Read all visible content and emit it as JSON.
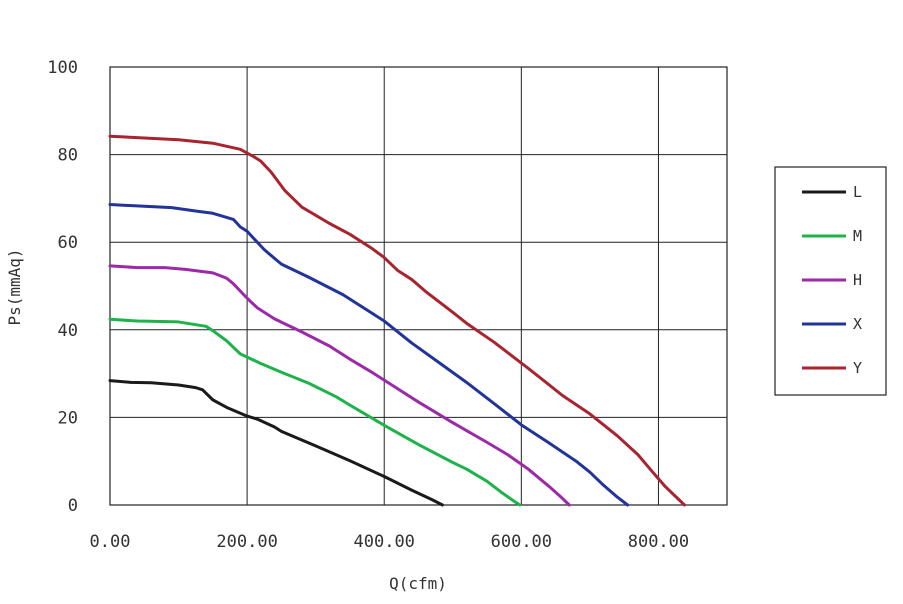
{
  "chart_data": {
    "type": "line",
    "xlabel": "Q(cfm)",
    "ylabel": "Ps(mmAq)",
    "xlim": [
      0,
      900
    ],
    "ylim": [
      0,
      100
    ],
    "x_ticks": [
      0,
      200,
      400,
      600,
      800
    ],
    "x_tick_labels": [
      "0.00",
      "200.00",
      "400.00",
      "600.00",
      "800.00"
    ],
    "y_ticks": [
      0,
      20,
      40,
      60,
      80,
      100
    ],
    "y_tick_labels": [
      "0",
      "20",
      "40",
      "60",
      "80",
      "100"
    ],
    "grid": true,
    "legend_position": "right",
    "series": [
      {
        "name": "L",
        "color": "#1a1a1a",
        "points": [
          [
            0,
            28.4
          ],
          [
            30,
            28.0
          ],
          [
            60,
            27.9
          ],
          [
            100,
            27.4
          ],
          [
            125,
            26.8
          ],
          [
            135,
            26.3
          ],
          [
            150,
            24.0
          ],
          [
            170,
            22.3
          ],
          [
            200,
            20.3
          ],
          [
            215,
            19.6
          ],
          [
            240,
            17.8
          ],
          [
            250,
            16.8
          ],
          [
            300,
            13.5
          ],
          [
            350,
            10.1
          ],
          [
            400,
            6.5
          ],
          [
            440,
            3.4
          ],
          [
            470,
            1.2
          ],
          [
            485,
            0
          ]
        ]
      },
      {
        "name": "M",
        "color": "#1db34a",
        "points": [
          [
            0,
            42.4
          ],
          [
            40,
            42.0
          ],
          [
            100,
            41.8
          ],
          [
            140,
            40.8
          ],
          [
            150,
            39.8
          ],
          [
            170,
            37.5
          ],
          [
            190,
            34.5
          ],
          [
            220,
            32.3
          ],
          [
            250,
            30.3
          ],
          [
            290,
            27.8
          ],
          [
            330,
            24.7
          ],
          [
            350,
            22.8
          ],
          [
            400,
            18.2
          ],
          [
            450,
            13.8
          ],
          [
            500,
            9.7
          ],
          [
            520,
            8.2
          ],
          [
            550,
            5.4
          ],
          [
            570,
            3.0
          ],
          [
            590,
            0.8
          ],
          [
            598,
            0
          ]
        ]
      },
      {
        "name": "H",
        "color": "#9c2aa8",
        "points": [
          [
            0,
            54.6
          ],
          [
            40,
            54.2
          ],
          [
            80,
            54.2
          ],
          [
            110,
            53.8
          ],
          [
            150,
            53.0
          ],
          [
            170,
            51.8
          ],
          [
            180,
            50.5
          ],
          [
            200,
            47.2
          ],
          [
            215,
            45.0
          ],
          [
            240,
            42.5
          ],
          [
            280,
            39.5
          ],
          [
            320,
            36.3
          ],
          [
            350,
            33.3
          ],
          [
            380,
            30.5
          ],
          [
            400,
            28.5
          ],
          [
            450,
            23.5
          ],
          [
            500,
            18.8
          ],
          [
            550,
            14.3
          ],
          [
            580,
            11.5
          ],
          [
            610,
            8.2
          ],
          [
            640,
            4.3
          ],
          [
            660,
            1.5
          ],
          [
            670,
            0
          ]
        ]
      },
      {
        "name": "X",
        "color": "#22339a",
        "points": [
          [
            0,
            68.6
          ],
          [
            50,
            68.2
          ],
          [
            90,
            67.9
          ],
          [
            130,
            67.0
          ],
          [
            150,
            66.6
          ],
          [
            180,
            65.2
          ],
          [
            190,
            63.5
          ],
          [
            200,
            62.5
          ],
          [
            210,
            60.8
          ],
          [
            225,
            58.3
          ],
          [
            240,
            56.3
          ],
          [
            250,
            55.0
          ],
          [
            290,
            52.0
          ],
          [
            340,
            48.0
          ],
          [
            380,
            44.0
          ],
          [
            400,
            42.0
          ],
          [
            440,
            37.0
          ],
          [
            480,
            32.5
          ],
          [
            520,
            28.0
          ],
          [
            560,
            23.2
          ],
          [
            600,
            18.3
          ],
          [
            640,
            14.2
          ],
          [
            680,
            10.0
          ],
          [
            700,
            7.5
          ],
          [
            720,
            4.5
          ],
          [
            740,
            1.8
          ],
          [
            755,
            0
          ]
        ]
      },
      {
        "name": "Y",
        "color": "#a8242e",
        "points": [
          [
            0,
            84.2
          ],
          [
            50,
            83.8
          ],
          [
            100,
            83.4
          ],
          [
            150,
            82.6
          ],
          [
            190,
            81.2
          ],
          [
            210,
            79.5
          ],
          [
            220,
            78.5
          ],
          [
            235,
            76.0
          ],
          [
            255,
            71.8
          ],
          [
            280,
            68.0
          ],
          [
            320,
            64.3
          ],
          [
            350,
            61.8
          ],
          [
            380,
            58.8
          ],
          [
            400,
            56.5
          ],
          [
            420,
            53.5
          ],
          [
            440,
            51.5
          ],
          [
            460,
            48.8
          ],
          [
            500,
            44.0
          ],
          [
            520,
            41.5
          ],
          [
            560,
            37.2
          ],
          [
            580,
            34.8
          ],
          [
            610,
            31.2
          ],
          [
            640,
            27.5
          ],
          [
            660,
            25.0
          ],
          [
            700,
            20.8
          ],
          [
            740,
            15.8
          ],
          [
            770,
            11.5
          ],
          [
            790,
            7.8
          ],
          [
            810,
            4.2
          ],
          [
            830,
            1.2
          ],
          [
            838,
            0
          ]
        ]
      }
    ]
  }
}
